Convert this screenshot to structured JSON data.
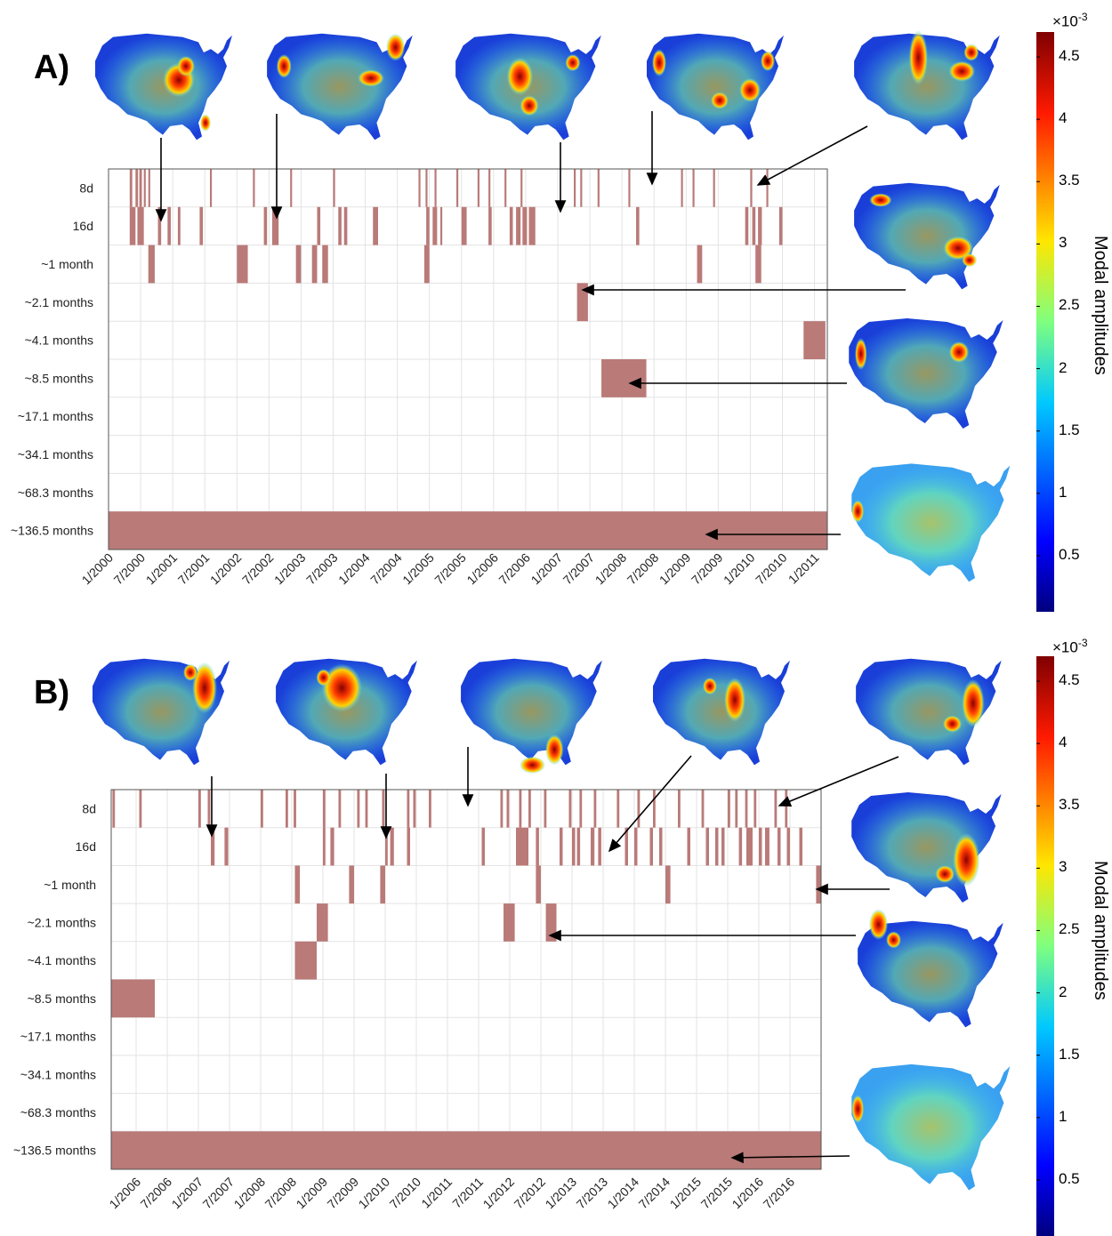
{
  "panels": [
    {
      "label": "A)",
      "chart_data": {
        "type": "heatmap",
        "description_rows": [
          "8d",
          "16d",
          "~1 month",
          "~2.1 months",
          "~4.1 months",
          "~8.5 months",
          "~17.1 months",
          "~34.1 months",
          "~68.3 months",
          "~136.5 months"
        ],
        "x_ticks": [
          "1/2000",
          "7/2000",
          "1/2001",
          "7/2001",
          "1/2002",
          "7/2002",
          "1/2003",
          "7/2003",
          "1/2004",
          "7/2004",
          "1/2005",
          "7/2005",
          "1/2006",
          "7/2006",
          "1/2007",
          "7/2007",
          "1/2008",
          "7/2008",
          "1/2009",
          "7/2009",
          "1/2010",
          "7/2010",
          "1/2011"
        ],
        "x_range_years": [
          2000.0,
          2011.2
        ],
        "active": {
          "8d": [
            [
              2000.33,
              2000.37
            ],
            [
              2000.42,
              2000.46
            ],
            [
              2000.48,
              2000.52
            ],
            [
              2000.55,
              2000.58
            ],
            [
              2000.62,
              2000.65
            ],
            [
              2001.58,
              2001.61
            ],
            [
              2002.25,
              2002.28
            ],
            [
              2002.83,
              2002.86
            ],
            [
              2003.5,
              2003.53
            ],
            [
              2004.83,
              2004.86
            ],
            [
              2004.94,
              2004.97
            ],
            [
              2005.08,
              2005.11
            ],
            [
              2005.42,
              2005.45
            ],
            [
              2005.75,
              2005.78
            ],
            [
              2005.92,
              2005.95
            ],
            [
              2006.17,
              2006.2
            ],
            [
              2006.42,
              2006.45
            ],
            [
              2007.25,
              2007.28
            ],
            [
              2007.35,
              2007.38
            ],
            [
              2007.62,
              2007.65
            ],
            [
              2008.1,
              2008.13
            ],
            [
              2008.92,
              2008.95
            ],
            [
              2009.1,
              2009.13
            ],
            [
              2009.42,
              2009.45
            ],
            [
              2010.0,
              2010.03
            ],
            [
              2010.25,
              2010.28
            ]
          ],
          "16d": [
            [
              2000.33,
              2000.42
            ],
            [
              2000.45,
              2000.55
            ],
            [
              2000.77,
              2000.82
            ],
            [
              2000.92,
              2000.97
            ],
            [
              2001.08,
              2001.12
            ],
            [
              2001.42,
              2001.47
            ],
            [
              2002.42,
              2002.47
            ],
            [
              2002.55,
              2002.65
            ],
            [
              2003.25,
              2003.3
            ],
            [
              2003.58,
              2003.63
            ],
            [
              2003.67,
              2003.72
            ],
            [
              2004.12,
              2004.2
            ],
            [
              2004.95,
              2005.0
            ],
            [
              2005.05,
              2005.12
            ],
            [
              2005.17,
              2005.2
            ],
            [
              2005.5,
              2005.58
            ],
            [
              2005.92,
              2005.97
            ],
            [
              2006.25,
              2006.3
            ],
            [
              2006.35,
              2006.42
            ],
            [
              2006.45,
              2006.52
            ],
            [
              2006.55,
              2006.65
            ],
            [
              2008.22,
              2008.27
            ],
            [
              2009.92,
              2009.97
            ],
            [
              2010.03,
              2010.08
            ],
            [
              2010.12,
              2010.18
            ],
            [
              2010.45,
              2010.5
            ]
          ],
          "~1 month": [
            [
              2000.62,
              2000.72
            ],
            [
              2002.0,
              2002.17
            ],
            [
              2002.92,
              2003.0
            ],
            [
              2003.17,
              2003.25
            ],
            [
              2003.33,
              2003.42
            ],
            [
              2004.92,
              2005.0
            ],
            [
              2009.17,
              2009.25
            ],
            [
              2010.08,
              2010.17
            ]
          ],
          "~2.1 months": [
            [
              2007.3,
              2007.47
            ]
          ],
          "~4.1 months": [
            [
              2010.83,
              2011.17
            ]
          ],
          "~8.5 months": [
            [
              2007.68,
              2008.38
            ]
          ],
          "~136.5 months": [
            [
              2000.0,
              2011.2
            ]
          ]
        }
      }
    },
    {
      "label": "B)",
      "chart_data": {
        "type": "heatmap",
        "description_rows": [
          "8d",
          "16d",
          "~1 month",
          "~2.1 months",
          "~4.1 months",
          "~8.5 months",
          "~17.1 months",
          "~34.1 months",
          "~68.3 months",
          "~136.5 months"
        ],
        "x_ticks": [
          "1/2006",
          "7/2006",
          "1/2007",
          "7/2007",
          "1/2008",
          "7/2008",
          "1/2009",
          "7/2009",
          "1/2010",
          "7/2010",
          "1/2011",
          "7/2011",
          "1/2012",
          "7/2012",
          "1/2013",
          "7/2013",
          "1/2014",
          "7/2014",
          "1/2015",
          "7/2015",
          "1/2016",
          "7/2016"
        ],
        "x_range_years": [
          2005.6,
          2017.0
        ],
        "active": {
          "8d": [
            [
              2005.62,
              2005.66
            ],
            [
              2006.05,
              2006.09
            ],
            [
              2007.0,
              2007.04
            ],
            [
              2007.15,
              2007.19
            ],
            [
              2008.0,
              2008.04
            ],
            [
              2008.4,
              2008.44
            ],
            [
              2008.53,
              2008.57
            ],
            [
              2009.0,
              2009.04
            ],
            [
              2009.25,
              2009.29
            ],
            [
              2009.55,
              2009.59
            ],
            [
              2009.68,
              2009.72
            ],
            [
              2009.95,
              2009.99
            ],
            [
              2010.35,
              2010.39
            ],
            [
              2010.45,
              2010.49
            ],
            [
              2010.7,
              2010.74
            ],
            [
              2011.85,
              2011.89
            ],
            [
              2011.95,
              2011.99
            ],
            [
              2012.15,
              2012.19
            ],
            [
              2012.3,
              2012.34
            ],
            [
              2012.55,
              2012.59
            ],
            [
              2012.95,
              2012.99
            ],
            [
              2013.12,
              2013.16
            ],
            [
              2013.35,
              2013.39
            ],
            [
              2013.72,
              2013.76
            ],
            [
              2014.05,
              2014.09
            ],
            [
              2014.3,
              2014.34
            ],
            [
              2014.7,
              2014.74
            ],
            [
              2015.08,
              2015.12
            ],
            [
              2015.5,
              2015.54
            ],
            [
              2015.62,
              2015.66
            ],
            [
              2015.78,
              2015.82
            ],
            [
              2015.92,
              2015.96
            ],
            [
              2016.25,
              2016.29
            ],
            [
              2016.42,
              2016.46
            ]
          ],
          "16d": [
            [
              2007.2,
              2007.26
            ],
            [
              2007.42,
              2007.48
            ],
            [
              2009.0,
              2009.04
            ],
            [
              2009.12,
              2009.18
            ],
            [
              2010.0,
              2010.04
            ],
            [
              2010.08,
              2010.14
            ],
            [
              2010.35,
              2010.4
            ],
            [
              2011.55,
              2011.6
            ],
            [
              2012.1,
              2012.3
            ],
            [
              2012.42,
              2012.47
            ],
            [
              2012.8,
              2012.85
            ],
            [
              2013.0,
              2013.05
            ],
            [
              2013.08,
              2013.13
            ],
            [
              2013.3,
              2013.36
            ],
            [
              2013.42,
              2013.47
            ],
            [
              2013.85,
              2013.9
            ],
            [
              2014.0,
              2014.05
            ],
            [
              2014.25,
              2014.3
            ],
            [
              2014.4,
              2014.45
            ],
            [
              2014.85,
              2014.9
            ],
            [
              2015.15,
              2015.2
            ],
            [
              2015.3,
              2015.35
            ],
            [
              2015.4,
              2015.45
            ],
            [
              2015.68,
              2015.73
            ],
            [
              2015.8,
              2015.9
            ],
            [
              2016.0,
              2016.05
            ],
            [
              2016.1,
              2016.17
            ],
            [
              2016.3,
              2016.35
            ],
            [
              2016.45,
              2016.5
            ],
            [
              2016.65,
              2016.7
            ]
          ],
          "~1 month": [
            [
              2008.55,
              2008.63
            ],
            [
              2009.42,
              2009.5
            ],
            [
              2009.92,
              2010.0
            ],
            [
              2012.42,
              2012.5
            ],
            [
              2014.5,
              2014.58
            ],
            [
              2016.92,
              2017.0
            ]
          ],
          "~2.1 months": [
            [
              2008.9,
              2009.08
            ],
            [
              2011.9,
              2012.08
            ],
            [
              2012.58,
              2012.75
            ]
          ],
          "~4.1 months": [
            [
              2008.55,
              2008.9
            ]
          ],
          "~8.5 months": [
            [
              2005.6,
              2006.3
            ]
          ],
          "~136.5 months": [
            [
              2005.6,
              2017.0
            ]
          ]
        }
      }
    }
  ],
  "colorbar": {
    "title": "Modal amplitudes",
    "exponent": "×10",
    "exponent_power": "-3",
    "ticks": [
      "4.5",
      "4",
      "3.5",
      "3",
      "2.5",
      "2",
      "1.5",
      "1",
      "0.5"
    ]
  },
  "colors": {
    "bar_fill": "#b97a78",
    "grid": "#e3e3e3",
    "axis": "#555555"
  }
}
